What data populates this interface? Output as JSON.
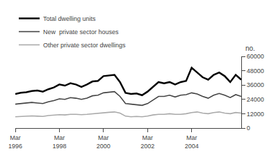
{
  "chart_data": {
    "type": "line",
    "ylabel": "no.",
    "categories": [
      "Mar\n1996",
      null,
      null,
      null,
      null,
      null,
      null,
      null,
      "Mar\n1998",
      null,
      null,
      null,
      null,
      null,
      null,
      null,
      "Mar\n2000",
      null,
      null,
      null,
      null,
      null,
      null,
      null,
      "Mar\n2002",
      null,
      null,
      null,
      null,
      null,
      null,
      null,
      "Mar\n2004",
      null,
      null,
      null,
      null,
      null,
      null,
      null,
      null,
      null
    ],
    "series": [
      {
        "name": "Total dwelling units",
        "color": "#000000",
        "values": [
          28500,
          29500,
          30000,
          31000,
          31500,
          30500,
          32500,
          34000,
          36500,
          35500,
          37500,
          36500,
          34500,
          36500,
          39000,
          39500,
          43500,
          44000,
          44500,
          38500,
          29500,
          28500,
          29000,
          27500,
          30500,
          34500,
          38500,
          37500,
          38500,
          36500,
          38500,
          39500,
          50500,
          46500,
          42500,
          40500,
          44500,
          46500,
          43500,
          38500,
          44500,
          40500
        ]
      },
      {
        "name": "New  private sector houses",
        "color": "#444444",
        "values": [
          20000,
          20500,
          21000,
          21500,
          21000,
          20500,
          22000,
          23000,
          24500,
          24000,
          25500,
          25000,
          24000,
          25000,
          27000,
          27500,
          29500,
          30000,
          30500,
          26500,
          20500,
          20000,
          19500,
          19000,
          20500,
          23500,
          26500,
          26500,
          27500,
          26000,
          27500,
          28000,
          29500,
          28500,
          26500,
          25000,
          27500,
          29000,
          27500,
          25500,
          28000,
          26500
        ]
      },
      {
        "name": "Other private sector dwellings",
        "color": "#aaaaaa",
        "values": [
          9500,
          9800,
          10000,
          10200,
          10000,
          9800,
          10500,
          11000,
          11200,
          11000,
          11500,
          11500,
          11200,
          11500,
          12000,
          12500,
          13000,
          13200,
          13500,
          12500,
          10000,
          9500,
          9800,
          9500,
          10000,
          11000,
          11500,
          11500,
          12000,
          11500,
          11500,
          12000,
          13000,
          13500,
          12500,
          12000,
          13000,
          13500,
          12500,
          12000,
          13000,
          12500
        ]
      }
    ],
    "ylim": [
      0,
      60000
    ],
    "yticks": [
      0,
      12000,
      24000,
      36000,
      48000,
      60000
    ],
    "grid": false,
    "legend": "upper left"
  }
}
